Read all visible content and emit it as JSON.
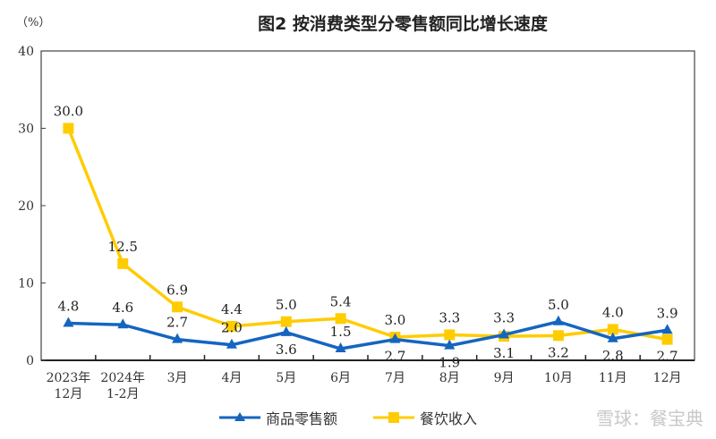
{
  "watermark": "雪球：餐宝典",
  "chart_data": {
    "type": "line",
    "title": "图2  按消费类型分零售额同比增长速度",
    "ylabel": "（%）",
    "ylim": [
      0,
      40
    ],
    "yticks": [
      0,
      10,
      20,
      30,
      40
    ],
    "grid": false,
    "legend": "bottom",
    "categories": [
      [
        "2023年",
        "12月"
      ],
      [
        "2024年",
        "1-2月"
      ],
      [
        "3月"
      ],
      [
        "4月"
      ],
      [
        "5月"
      ],
      [
        "6月"
      ],
      [
        "7月"
      ],
      [
        "8月"
      ],
      [
        "9月"
      ],
      [
        "10月"
      ],
      [
        "11月"
      ],
      [
        "12月"
      ]
    ],
    "series": [
      {
        "name": "商品零售额",
        "color": "#1565c0",
        "marker": "triangle",
        "values": [
          4.8,
          4.6,
          2.7,
          2.0,
          3.6,
          1.5,
          2.7,
          1.9,
          3.3,
          5.0,
          2.8,
          3.9
        ]
      },
      {
        "name": "餐饮收入",
        "color": "#ffcc00",
        "marker": "square",
        "values": [
          30.0,
          12.5,
          6.9,
          4.4,
          5.0,
          5.4,
          3.0,
          3.3,
          3.1,
          3.2,
          4.0,
          2.7
        ]
      }
    ]
  }
}
